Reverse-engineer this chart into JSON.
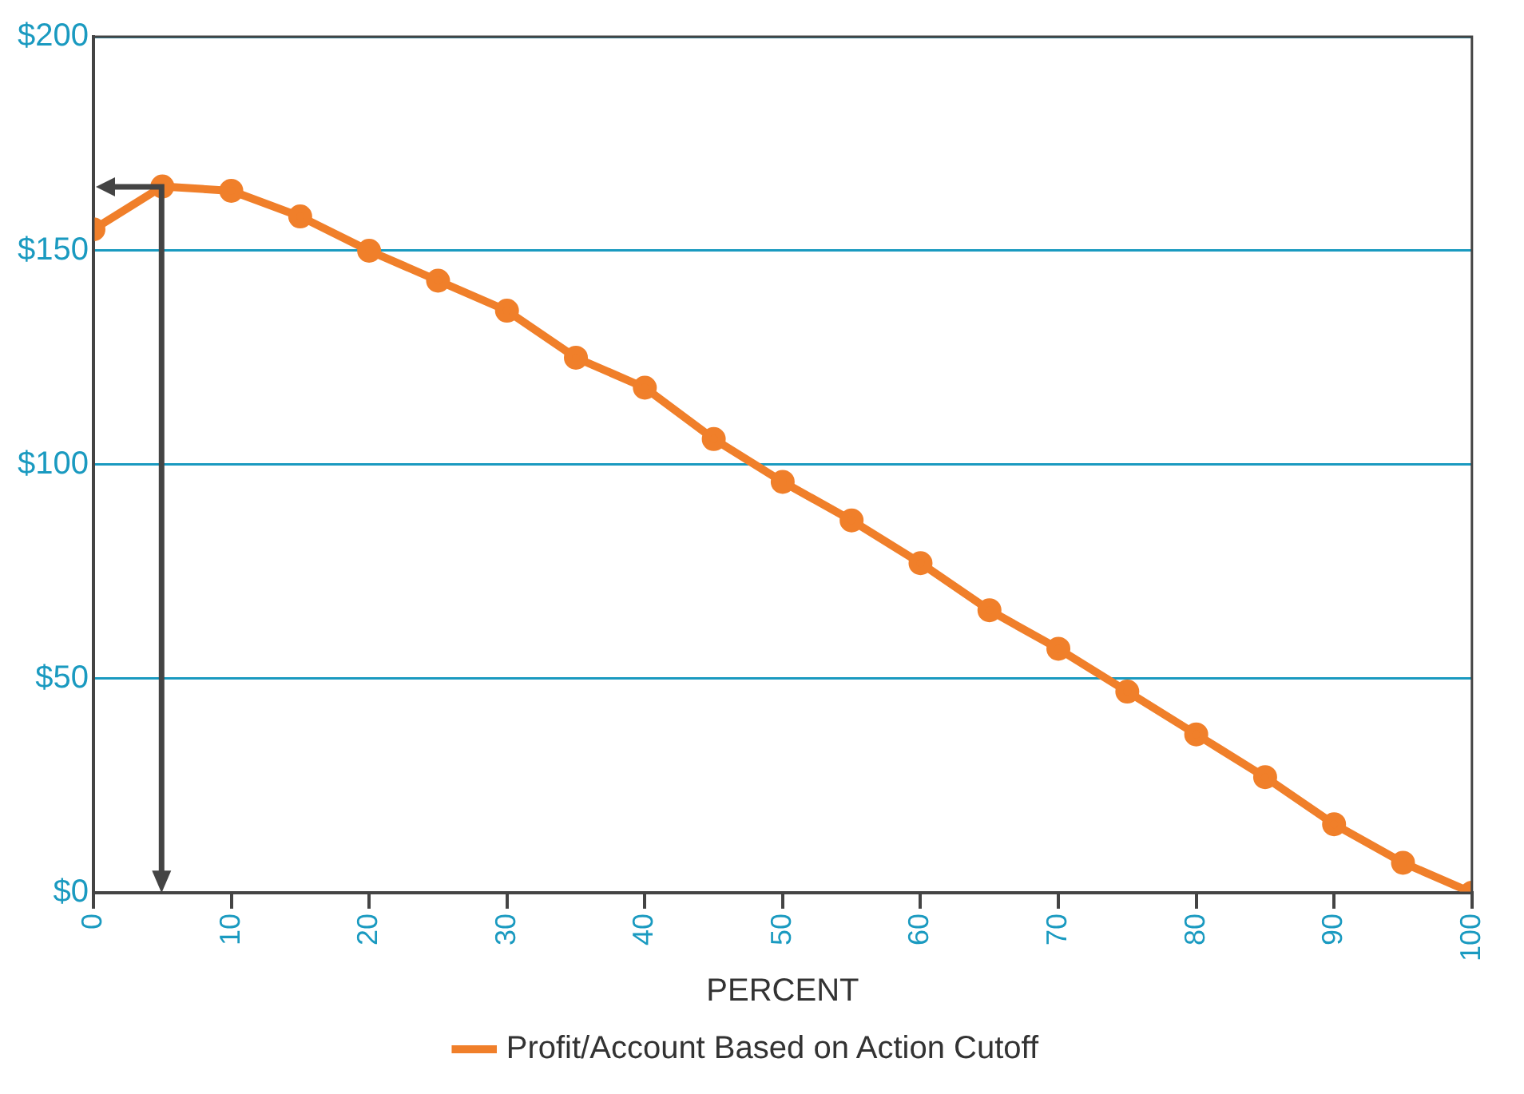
{
  "chart_data": {
    "type": "line",
    "xlabel": "PERCENT",
    "x": [
      0,
      5,
      10,
      15,
      20,
      25,
      30,
      35,
      40,
      45,
      50,
      55,
      60,
      65,
      70,
      75,
      80,
      85,
      90,
      95,
      100
    ],
    "series": [
      {
        "name": "Profit/Account Based on Action Cutoff",
        "color": "#f07f2a",
        "values": [
          155,
          165,
          164,
          158,
          150,
          143,
          136,
          125,
          118,
          106,
          96,
          87,
          77,
          66,
          57,
          47,
          37,
          27,
          16,
          7,
          0
        ]
      }
    ],
    "xlim": [
      0,
      100
    ],
    "xticks": [
      0,
      10,
      20,
      30,
      40,
      50,
      60,
      70,
      80,
      90,
      100
    ],
    "ylim": [
      0,
      200
    ],
    "yticks": [
      {
        "value": 0,
        "label": "$0"
      },
      {
        "value": 50,
        "label": "$50"
      },
      {
        "value": 100,
        "label": "$100"
      },
      {
        "value": 150,
        "label": "$150"
      },
      {
        "value": 200,
        "label": "$200"
      }
    ],
    "grid": "y",
    "legend": "bottom",
    "marker": "circle",
    "line_style": "solid"
  }
}
